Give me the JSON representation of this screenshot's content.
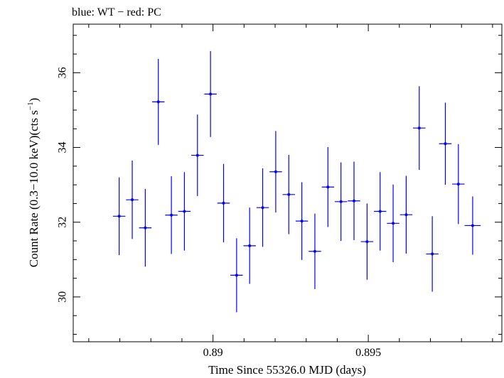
{
  "chart_data": {
    "type": "scatter",
    "title": "blue: WT − red: PC",
    "xlabel": "Time Since 55326.0 MJD (days)",
    "ylabel_main": "Count Rate (0.3−10.0 keV)(cts s",
    "ylabel_sup": "−1",
    "ylabel_end": ")",
    "xlim": [
      0.8855,
      0.8993
    ],
    "ylim": [
      28.8,
      37.3
    ],
    "x_ticks": [
      {
        "value": 0.89,
        "label": "0.89"
      },
      {
        "value": 0.895,
        "label": "0.895"
      }
    ],
    "x_minor_step": 0.001,
    "y_ticks": [
      {
        "value": 30,
        "label": "30"
      },
      {
        "value": 32,
        "label": "32"
      },
      {
        "value": 34,
        "label": "34"
      },
      {
        "value": 36,
        "label": "36"
      }
    ],
    "y_minor_step": 0.5,
    "grid": false,
    "series": [
      {
        "color": "#0000ff",
        "points": [
          {
            "x": 0.88698,
            "xerr": 0.0002,
            "y": 32.16,
            "yerr": 1.04
          },
          {
            "x": 0.8874,
            "xerr": 0.0002,
            "y": 32.6,
            "yerr": 1.05
          },
          {
            "x": 0.88782,
            "xerr": 0.0002,
            "y": 31.85,
            "yerr": 1.04
          },
          {
            "x": 0.88824,
            "xerr": 0.0002,
            "y": 35.22,
            "yerr": 1.15
          },
          {
            "x": 0.88866,
            "xerr": 0.0002,
            "y": 32.19,
            "yerr": 1.04
          },
          {
            "x": 0.88908,
            "xerr": 0.0002,
            "y": 32.29,
            "yerr": 1.05
          },
          {
            "x": 0.8895,
            "xerr": 0.0002,
            "y": 33.79,
            "yerr": 1.09
          },
          {
            "x": 0.88992,
            "xerr": 0.0002,
            "y": 35.43,
            "yerr": 1.15
          },
          {
            "x": 0.89034,
            "xerr": 0.0002,
            "y": 32.51,
            "yerr": 1.05
          },
          {
            "x": 0.89076,
            "xerr": 0.0002,
            "y": 30.58,
            "yerr": 0.99
          },
          {
            "x": 0.89118,
            "xerr": 0.0002,
            "y": 31.37,
            "yerr": 1.02
          },
          {
            "x": 0.8916,
            "xerr": 0.0002,
            "y": 32.39,
            "yerr": 1.05
          },
          {
            "x": 0.89202,
            "xerr": 0.0002,
            "y": 33.35,
            "yerr": 1.09
          },
          {
            "x": 0.89244,
            "xerr": 0.0002,
            "y": 32.74,
            "yerr": 1.06
          },
          {
            "x": 0.89286,
            "xerr": 0.0002,
            "y": 32.03,
            "yerr": 1.04
          },
          {
            "x": 0.89328,
            "xerr": 0.0002,
            "y": 31.22,
            "yerr": 1.01
          },
          {
            "x": 0.8937,
            "xerr": 0.0002,
            "y": 32.94,
            "yerr": 1.07
          },
          {
            "x": 0.89412,
            "xerr": 0.0002,
            "y": 32.55,
            "yerr": 1.05
          },
          {
            "x": 0.89454,
            "xerr": 0.0002,
            "y": 32.57,
            "yerr": 1.05
          },
          {
            "x": 0.89496,
            "xerr": 0.0002,
            "y": 31.48,
            "yerr": 1.02
          },
          {
            "x": 0.89538,
            "xerr": 0.0002,
            "y": 32.29,
            "yerr": 1.05
          },
          {
            "x": 0.8958,
            "xerr": 0.0002,
            "y": 31.97,
            "yerr": 1.04
          },
          {
            "x": 0.89622,
            "xerr": 0.0002,
            "y": 32.2,
            "yerr": 1.04
          },
          {
            "x": 0.89664,
            "xerr": 0.0002,
            "y": 34.52,
            "yerr": 1.12
          },
          {
            "x": 0.89706,
            "xerr": 0.0002,
            "y": 31.15,
            "yerr": 1.01
          },
          {
            "x": 0.89748,
            "xerr": 0.0002,
            "y": 34.1,
            "yerr": 1.1
          },
          {
            "x": 0.8979,
            "xerr": 0.0002,
            "y": 33.02,
            "yerr": 1.07
          },
          {
            "x": 0.89836,
            "xerr": 0.00026,
            "y": 31.91,
            "yerr": 0.78
          }
        ]
      }
    ]
  }
}
